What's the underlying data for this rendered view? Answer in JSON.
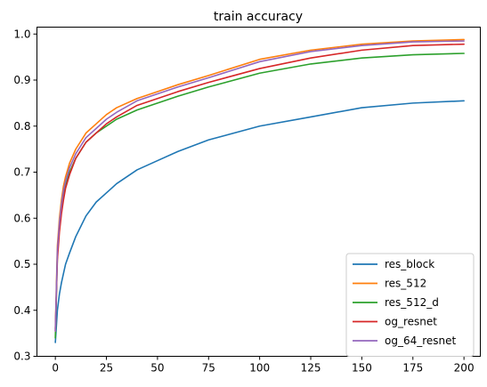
{
  "chart_data": {
    "type": "line",
    "title": "train accuracy",
    "xlabel": "",
    "ylabel": "",
    "xlim": [
      -9,
      208
    ],
    "ylim": [
      0.3,
      1.015
    ],
    "xticks": [
      0,
      25,
      50,
      75,
      100,
      125,
      150,
      175,
      200
    ],
    "yticks": [
      0.3,
      0.4,
      0.5,
      0.6,
      0.7,
      0.8,
      0.9,
      1.0
    ],
    "ytick_labels": [
      "0.3",
      "0.4",
      "0.5",
      "0.6",
      "0.7",
      "0.8",
      "0.9",
      "1.0"
    ],
    "grid": false,
    "legend_position": "bottom-right",
    "x": [
      0,
      1,
      2,
      3,
      4,
      5,
      7,
      10,
      15,
      20,
      25,
      30,
      40,
      50,
      60,
      75,
      100,
      125,
      150,
      175,
      200
    ],
    "series": [
      {
        "name": "res_block",
        "color": "#1f77b4",
        "values": [
          0.33,
          0.4,
          0.435,
          0.46,
          0.48,
          0.5,
          0.525,
          0.56,
          0.605,
          0.635,
          0.655,
          0.675,
          0.705,
          0.725,
          0.745,
          0.77,
          0.8,
          0.82,
          0.84,
          0.85,
          0.855
        ]
      },
      {
        "name": "res_512",
        "color": "#ff7f0e",
        "values": [
          0.36,
          0.54,
          0.6,
          0.64,
          0.67,
          0.69,
          0.72,
          0.75,
          0.785,
          0.805,
          0.825,
          0.84,
          0.86,
          0.875,
          0.89,
          0.91,
          0.945,
          0.965,
          0.978,
          0.985,
          0.988
        ]
      },
      {
        "name": "res_512_d",
        "color": "#2ca02c",
        "values": [
          0.34,
          0.52,
          0.58,
          0.62,
          0.65,
          0.67,
          0.7,
          0.73,
          0.765,
          0.785,
          0.8,
          0.815,
          0.835,
          0.85,
          0.865,
          0.885,
          0.915,
          0.935,
          0.948,
          0.955,
          0.958
        ]
      },
      {
        "name": "og_resnet",
        "color": "#d62728",
        "values": [
          0.355,
          0.51,
          0.57,
          0.61,
          0.64,
          0.665,
          0.695,
          0.73,
          0.765,
          0.785,
          0.805,
          0.82,
          0.845,
          0.86,
          0.875,
          0.895,
          0.925,
          0.948,
          0.965,
          0.975,
          0.978
        ]
      },
      {
        "name": "og_64_resnet",
        "color": "#9467bd",
        "values": [
          0.355,
          0.53,
          0.59,
          0.63,
          0.66,
          0.68,
          0.71,
          0.74,
          0.775,
          0.795,
          0.815,
          0.83,
          0.855,
          0.87,
          0.885,
          0.905,
          0.94,
          0.962,
          0.975,
          0.983,
          0.985
        ]
      }
    ]
  }
}
